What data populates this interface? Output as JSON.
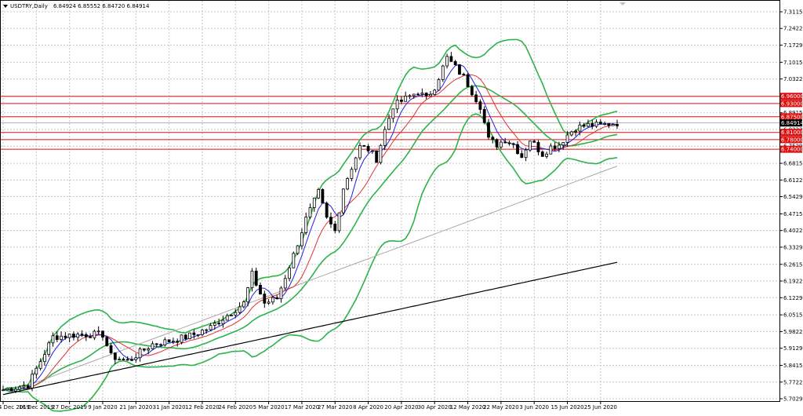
{
  "header": {
    "title": "USDTRY,Daily",
    "ohlc": "6.84924 6.85552 6.84720 6.84914"
  },
  "chart_data": {
    "type": "candlestick",
    "symbol": "USDTRY",
    "timeframe": "Daily",
    "y_ticks": [
      "7.31150",
      "7.24220",
      "7.17290",
      "7.10150",
      "7.03220",
      "6.96000",
      "6.89150",
      "6.82220",
      "6.75290",
      "6.68150",
      "6.61220",
      "6.54290",
      "6.47150",
      "6.40220",
      "6.33290",
      "6.26150",
      "6.19220",
      "6.12290",
      "6.05150",
      "5.98220",
      "5.91290",
      "5.84150",
      "5.77220",
      "5.70290"
    ],
    "x_ticks": [
      "4 Dec 2019",
      "16 Dec 2019",
      "27 Dec 2019",
      "9 Jan 2020",
      "21 Jan 2020",
      "31 Jan 2020",
      "12 Feb 2020",
      "24 Feb 2020",
      "5 Mar 2020",
      "17 Mar 2020",
      "27 Mar 2020",
      "8 Apr 2020",
      "20 Apr 2020",
      "30 Apr 2020",
      "12 May 2020",
      "22 May 2020",
      "3 Jun 2020",
      "15 Jun 2020",
      "25 Jun 2020"
    ],
    "ylim": [
      5.7029,
      7.3115
    ],
    "current_price": "6.84914",
    "price_levels": [
      "6.96000",
      "6.93000",
      "6.87500",
      "6.81000",
      "6.78000",
      "6.74000"
    ],
    "close_path": [
      [
        0,
        5.74
      ],
      [
        6,
        5.76
      ],
      [
        12,
        5.96
      ],
      [
        18,
        5.97
      ],
      [
        24,
        5.97
      ],
      [
        26,
        5.88
      ],
      [
        30,
        5.86
      ],
      [
        36,
        5.93
      ],
      [
        42,
        5.95
      ],
      [
        46,
        5.97
      ],
      [
        50,
        6.0
      ],
      [
        54,
        6.05
      ],
      [
        58,
        6.1
      ],
      [
        60,
        6.22
      ],
      [
        63,
        6.1
      ],
      [
        66,
        6.12
      ],
      [
        70,
        6.3
      ],
      [
        73,
        6.45
      ],
      [
        76,
        6.56
      ],
      [
        78,
        6.45
      ],
      [
        80,
        6.4
      ],
      [
        82,
        6.58
      ],
      [
        86,
        6.75
      ],
      [
        88,
        6.74
      ],
      [
        90,
        6.7
      ],
      [
        92,
        6.82
      ],
      [
        94,
        6.92
      ],
      [
        97,
        6.95
      ],
      [
        100,
        6.98
      ],
      [
        102,
        6.95
      ],
      [
        104,
        7.0
      ],
      [
        107,
        7.12
      ],
      [
        109,
        7.08
      ],
      [
        111,
        7.04
      ],
      [
        113,
        6.98
      ],
      [
        115,
        6.92
      ],
      [
        117,
        6.78
      ],
      [
        119,
        6.76
      ],
      [
        121,
        6.78
      ],
      [
        123,
        6.76
      ],
      [
        125,
        6.71
      ],
      [
        127,
        6.78
      ],
      [
        130,
        6.72
      ],
      [
        132,
        6.75
      ],
      [
        134,
        6.76
      ],
      [
        136,
        6.8
      ],
      [
        138,
        6.83
      ],
      [
        141,
        6.84
      ],
      [
        144,
        6.84
      ],
      [
        148,
        6.85
      ]
    ]
  }
}
